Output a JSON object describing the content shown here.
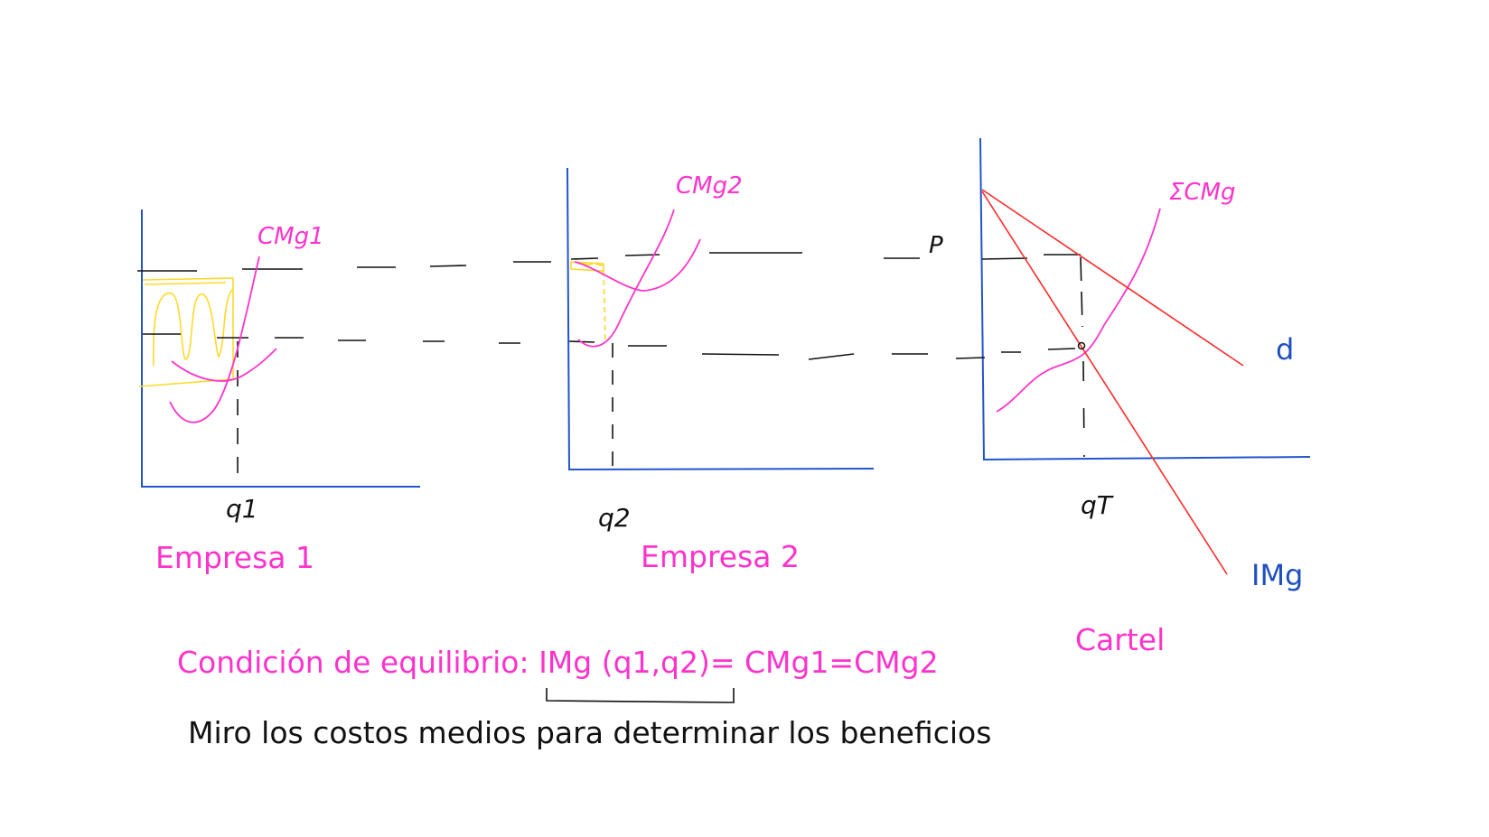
{
  "colors": {
    "axis": "#2255cc",
    "marginal_cost": "#ff33cc",
    "demand": "#ff2a2a",
    "dashes": "#111111",
    "highlight": "#ffe030",
    "caption_pink": "#ff33cc",
    "label_blue": "#1f4fbf"
  },
  "panels": {
    "firm1": {
      "title": "Empresa 1",
      "curve_label": "CMg1",
      "quantity_label": "q1"
    },
    "firm2": {
      "title": "Empresa 2",
      "curve_label": "CMg2",
      "quantity_label": "q2",
      "price_mark": "P"
    },
    "cartel": {
      "title": "Cartel",
      "curve_label": "ΣCMg",
      "quantity_label": "qT",
      "demand_label": "d",
      "mr_label": "IMg"
    }
  },
  "condition": {
    "prefix": "Condición de equilibrio:",
    "imr_part": "IMg (q1,q2)",
    "equals": "= CMg1=CMg2"
  },
  "note": "Miro los costos medios para determinar los beneficios"
}
